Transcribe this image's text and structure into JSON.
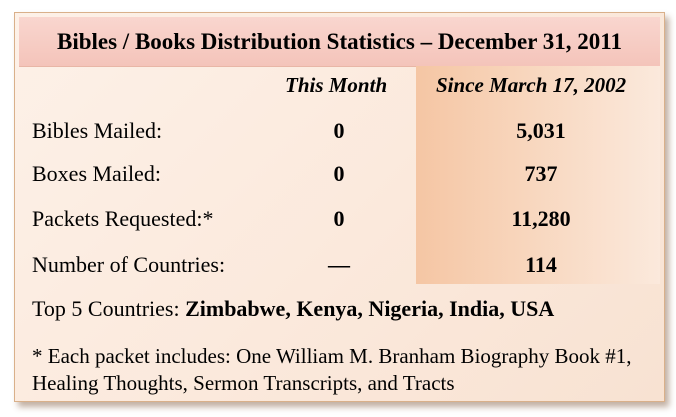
{
  "title": "Bibles / Books Distribution Statistics – December 31, 2011",
  "columns": {
    "this_month": "This Month",
    "since": "Since March 17, 2002"
  },
  "rows": [
    {
      "label": "Bibles Mailed:",
      "this_month": "0",
      "since": "5,031"
    },
    {
      "label": "Boxes Mailed:",
      "this_month": "0",
      "since": "737"
    },
    {
      "label": "Packets Requested:*",
      "this_month": "0",
      "since": "11,280"
    },
    {
      "label": "Number of Countries:",
      "this_month": "—",
      "since": "114"
    }
  ],
  "top_countries": {
    "label": "Top 5 Countries:",
    "value": "Zimbabwe, Kenya, Nigeria, India, USA"
  },
  "footnote": "* Each packet includes: One William M. Branham Biography Book #1, Healing Thoughts, Sermon Transcripts,  and Tracts"
}
